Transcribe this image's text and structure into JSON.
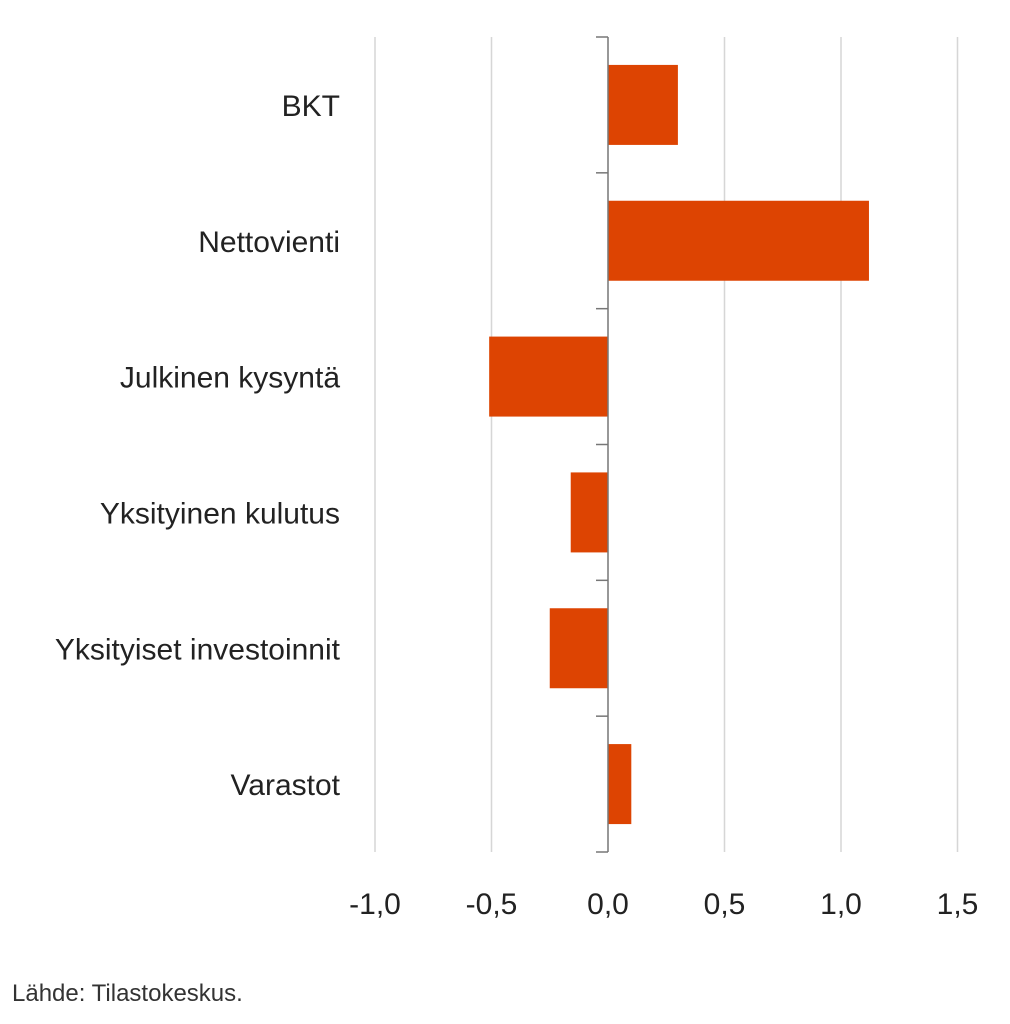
{
  "chart_data": {
    "type": "bar",
    "orientation": "horizontal",
    "title": "",
    "xlabel": "",
    "ylabel": "",
    "categories": [
      "BKT",
      "Nettovienti",
      "Julkinen kysyntä",
      "Yksityinen kulutus",
      "Yksityiset investoinnit",
      "Varastot"
    ],
    "values": [
      0.3,
      1.12,
      -0.51,
      -0.16,
      -0.25,
      0.1
    ],
    "xlim": [
      -1.0,
      1.5
    ],
    "xticks": [
      -1.0,
      -0.5,
      0.0,
      0.5,
      1.0,
      1.5
    ],
    "xtick_labels": [
      "-1,0",
      "-0,5",
      "0,0",
      "0,5",
      "1,0",
      "1,5"
    ],
    "grid": "vertical",
    "legend": "none",
    "bar_color": "#dd4402"
  },
  "source": "Lähde: Tilastokeskus."
}
